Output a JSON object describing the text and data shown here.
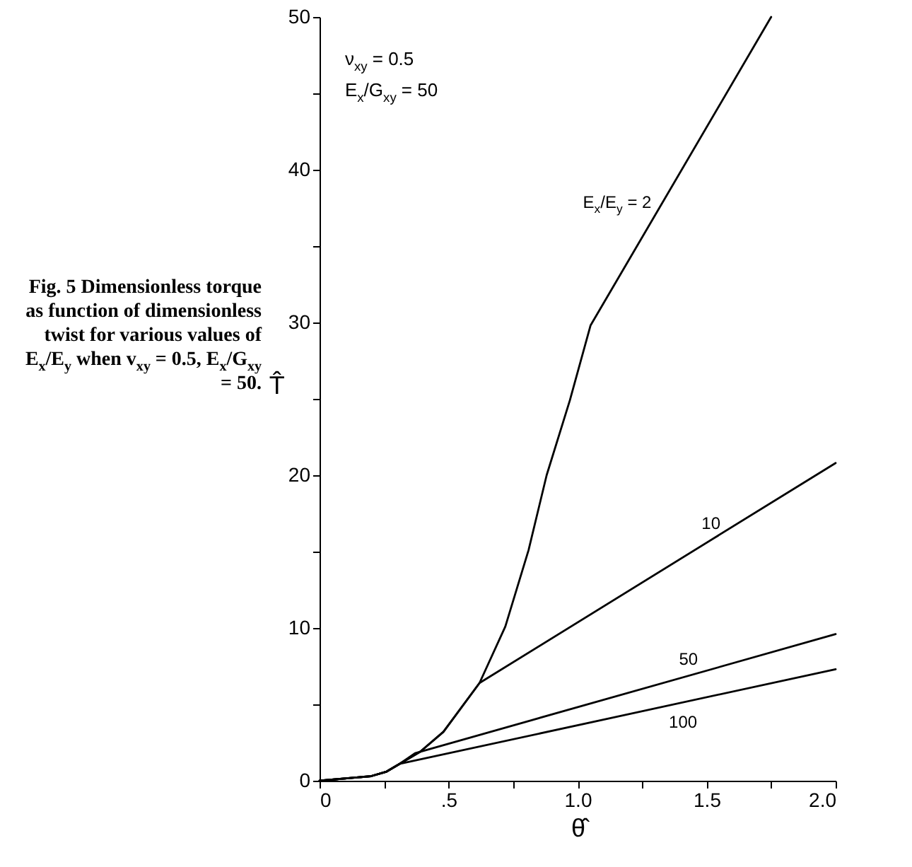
{
  "chart_data": {
    "type": "line",
    "xlabel": "θ̂",
    "ylabel": "T̂",
    "xlim": [
      0,
      2
    ],
    "ylim": [
      0,
      50
    ],
    "xticks": [
      0,
      {
        "value": 0.25,
        "label": null
      },
      {
        "value": 0.5,
        "label": ".5"
      },
      {
        "value": 0.75,
        "label": null
      },
      {
        "value": 1,
        "label": "1.0"
      },
      {
        "value": 1.25,
        "label": null
      },
      {
        "value": 1.5,
        "label": "1.5"
      },
      {
        "value": 1.75,
        "label": null
      },
      {
        "value": 2,
        "label": "2.0"
      }
    ],
    "yticks": [
      0,
      {
        "value": 5,
        "label": null
      },
      10,
      {
        "value": 15,
        "label": null
      },
      20,
      {
        "value": 25,
        "label": null
      },
      30,
      {
        "value": 35,
        "label": null
      },
      40,
      {
        "value": 45,
        "label": null
      },
      50
    ],
    "grid": false,
    "legend": false,
    "marker": "none",
    "line_style": "solid",
    "series": [
      {
        "name": "E$_{x}$/E$_{y}$ = 2",
        "color": "#000000",
        "x": [
          0,
          0.2,
          0.26,
          0.31,
          0.39,
          0.48,
          0.62,
          0.72,
          0.81,
          0.88,
          0.97,
          1.05,
          1.75
        ],
        "values": [
          0,
          0.3,
          0.6,
          1.1,
          1.9,
          3.2,
          6.4,
          10.1,
          15.1,
          20,
          24.9,
          29.8,
          50
        ]
      },
      {
        "name": "10",
        "color": "#000000",
        "x": [
          0,
          0.2,
          0.26,
          0.31,
          0.39,
          0.48,
          0.62,
          2
        ],
        "values": [
          0,
          0.3,
          0.6,
          1.1,
          1.9,
          3.2,
          6.4,
          20.8
        ]
      },
      {
        "name": "50",
        "color": "#000000",
        "x": [
          0,
          0.2,
          0.26,
          0.31,
          0.37,
          2
        ],
        "values": [
          0,
          0.3,
          0.6,
          1.1,
          1.8,
          9.6
        ]
      },
      {
        "name": "100",
        "color": "#000000",
        "x": [
          0,
          0.2,
          0.26,
          0.31,
          2
        ],
        "values": [
          0,
          0.3,
          0.6,
          1.1,
          7.3
        ]
      }
    ],
    "annotations": [
      "ν$_{xy}$ = 0.5",
      "E$_{x}$/G$_{xy}$ = 50",
      "Fig. 5 Dimensionless torque as function of dimensionless twist for various values of E$_{x}$/E$_{y}$ when v$_{xy}$ = 0.5, E$_{x}$/G$_{xy}$ = 50."
    ]
  }
}
